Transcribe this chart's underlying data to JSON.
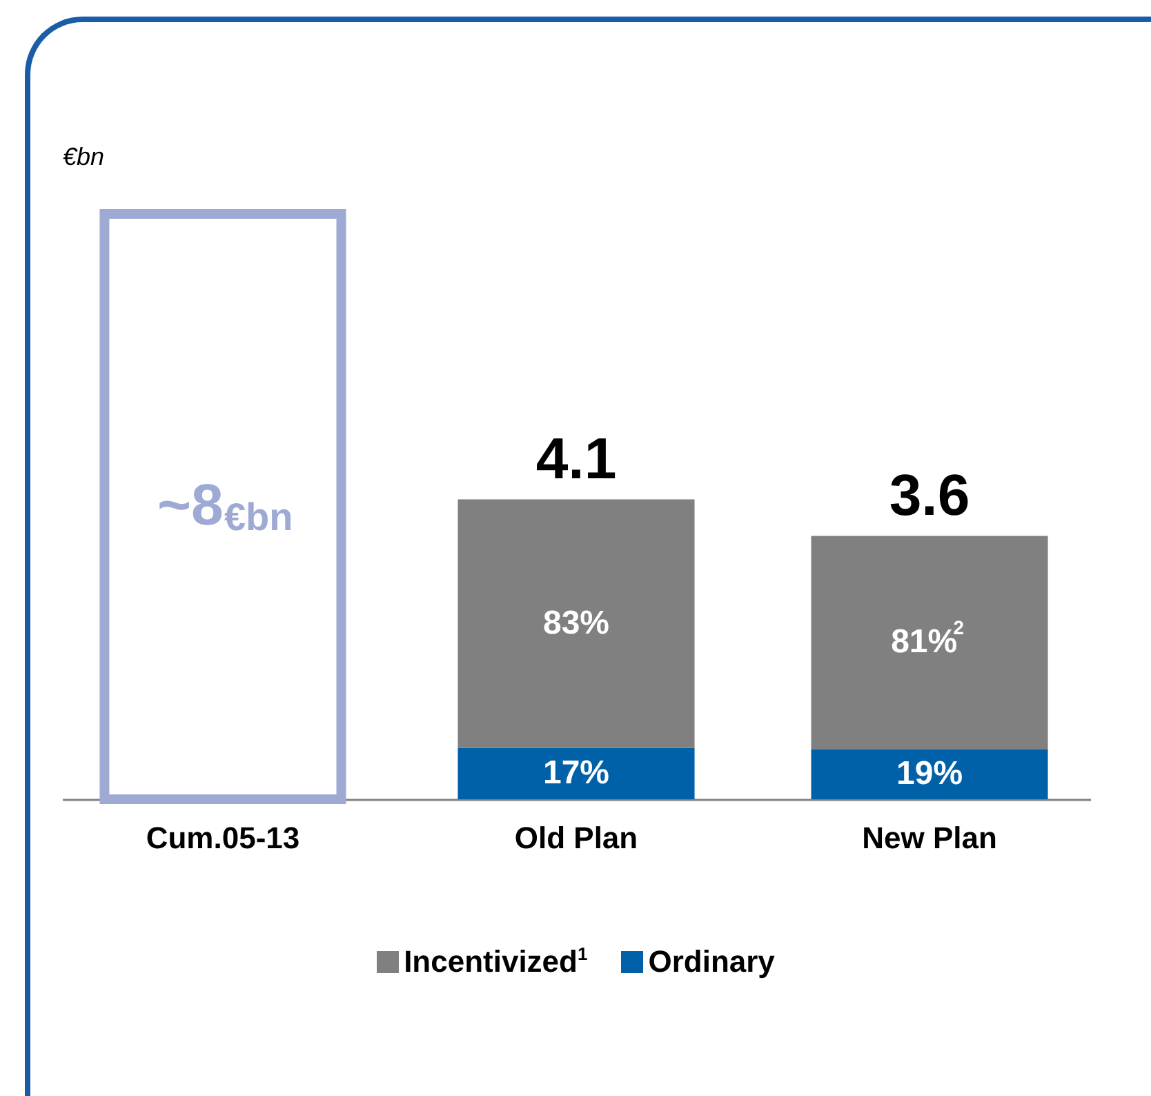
{
  "chart_data": {
    "type": "bar",
    "stacked": true,
    "ylabel": "€bn",
    "categories": [
      "Cum.05-13",
      "Old Plan",
      "New Plan"
    ],
    "series": [
      {
        "name": "Ordinary",
        "color": "#0060a8",
        "values": [
          null,
          0.7,
          0.68
        ]
      },
      {
        "name": "Incentivized$^{1}$",
        "color": "#808080",
        "values": [
          null,
          3.4,
          2.92
        ]
      },
      {
        "color": "#9eaad4",
        "values": [
          8,
          null,
          null
        ],
        "value_labels": [
          "~8€bn",
          null,
          null
        ]
      }
    ],
    "totals": [
      null,
      "4.1",
      "3.6"
    ],
    "annotations": [
      "17%",
      "19%",
      "83%",
      "81%$^{2}$"
    ],
    "legend": "bottom"
  }
}
